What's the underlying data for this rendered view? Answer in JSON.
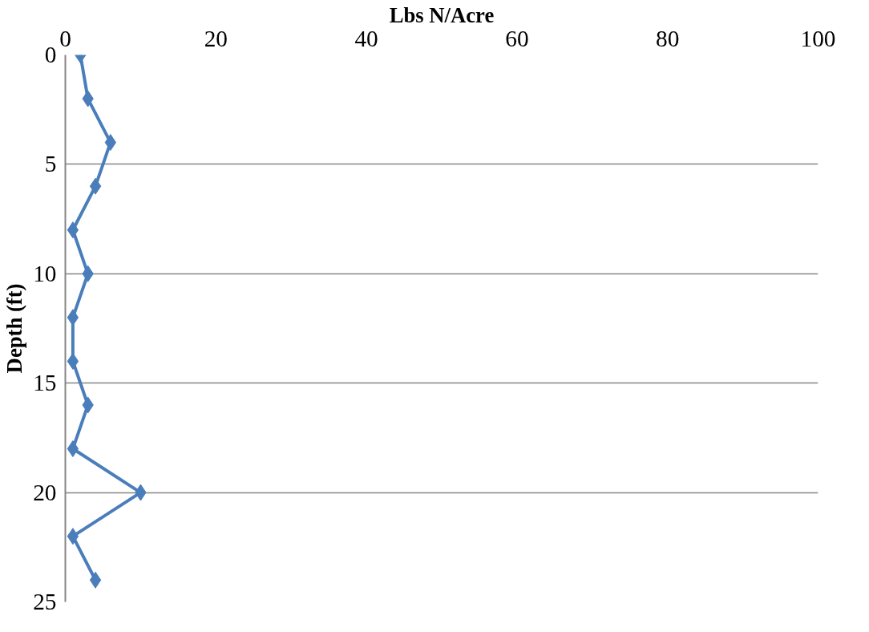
{
  "chart_data": {
    "type": "line",
    "xlabel": "Lbs N/Acre",
    "ylabel": "Depth (ft)",
    "xlim": [
      0,
      100
    ],
    "xticks": [
      0,
      20,
      40,
      60,
      80,
      100
    ],
    "ylim": [
      25,
      0
    ],
    "yticks": [
      0,
      5,
      10,
      15,
      20,
      25
    ],
    "grid": "y",
    "marker": "diamond",
    "series": [
      {
        "color": "#4a7ebb",
        "x": [
          2,
          3,
          6,
          4,
          1,
          3,
          1,
          1,
          3,
          1,
          10,
          1,
          4
        ],
        "values": [
          0,
          2,
          4,
          6,
          8,
          10,
          12,
          14,
          16,
          18,
          20,
          22,
          24
        ]
      }
    ]
  }
}
